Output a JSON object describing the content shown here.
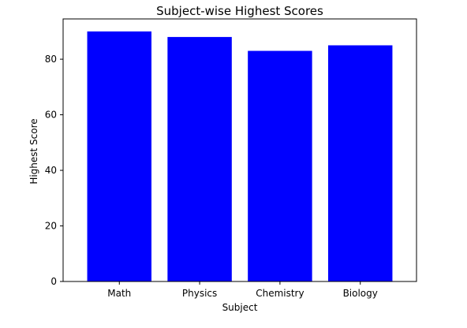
{
  "chart_data": {
    "type": "bar",
    "title": "Subject-wise Highest Scores",
    "xlabel": "Subject",
    "ylabel": "Highest Score",
    "categories": [
      "Math",
      "Physics",
      "Chemistry",
      "Biology"
    ],
    "values": [
      90,
      88,
      83,
      85
    ],
    "ylim": [
      0,
      94.5
    ],
    "yticks": [
      0,
      20,
      40,
      60,
      80
    ],
    "bar_color": "#0000ff",
    "grid": false,
    "legend": "none"
  }
}
